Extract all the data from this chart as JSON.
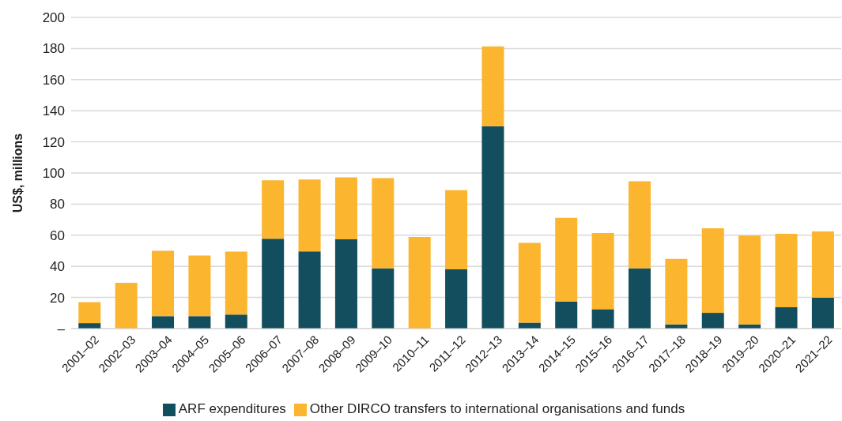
{
  "chart_data": {
    "type": "bar",
    "stacked": true,
    "ylabel": "US$, millions",
    "categories": [
      "2001–02",
      "2002–03",
      "2003–04",
      "2004–05",
      "2005–06",
      "2006–07",
      "2007–08",
      "2008–09",
      "2009–10",
      "2010–11",
      "2011–12",
      "2012–13",
      "2013–14",
      "2014–15",
      "2015–16",
      "2016–17",
      "2017–18",
      "2018–19",
      "2019–20",
      "2020–21",
      "2021–22"
    ],
    "series": [
      {
        "name": "ARF expenditures",
        "color": "#134e5e",
        "values": [
          3.5,
          0,
          8,
          8,
          9,
          57.7,
          49.6,
          57.3,
          38.7,
          0,
          38.1,
          130.1,
          3.8,
          17.3,
          12.5,
          38.7,
          2.7,
          10.1,
          2.7,
          13.7,
          19.9
        ]
      },
      {
        "name": "Other DIRCO transfers to international organisations and funds",
        "color": "#fbb52e",
        "values": [
          13.5,
          29.4,
          42,
          39,
          40.5,
          37.6,
          46.2,
          39.9,
          58,
          58.9,
          50.8,
          51.3,
          51.3,
          53.9,
          48.9,
          56,
          42.1,
          54.4,
          57.1,
          47.2,
          42.6
        ]
      }
    ],
    "ylim": [
      0,
      200
    ],
    "yticks": [
      {
        "value": 0,
        "label": "–"
      },
      20,
      40,
      60,
      80,
      100,
      120,
      140,
      160,
      180,
      200
    ],
    "grid": "y",
    "legend": "bottom"
  }
}
